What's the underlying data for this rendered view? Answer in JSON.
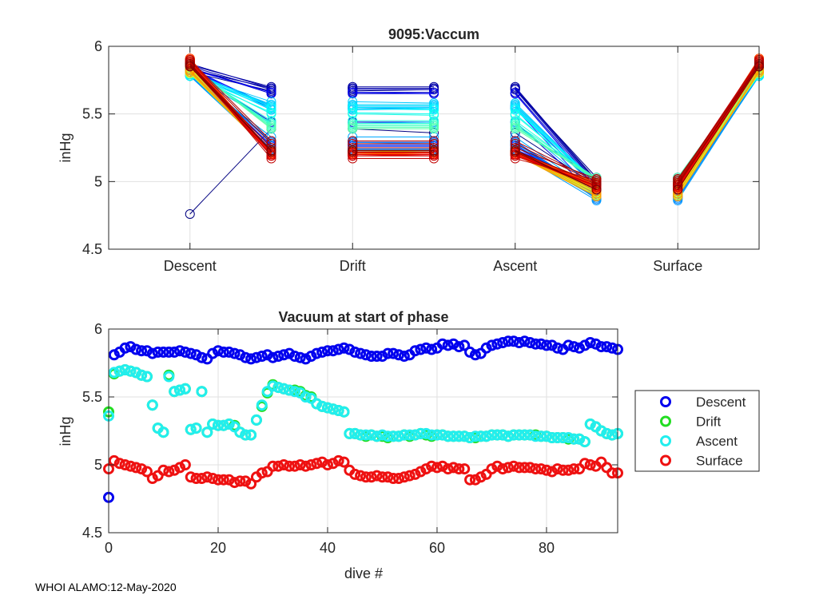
{
  "footer": "WHOI ALAMO:12-May-2020",
  "colors": {
    "descent": "#0000ee",
    "drift": "#22dd22",
    "ascent": "#22eeee",
    "surface": "#ee1111",
    "grid": "#e0e0e0",
    "axis": "#262626"
  },
  "chart_data": [
    {
      "type": "line",
      "title": "9095:Vaccum",
      "xlabel": "",
      "ylabel": "inHg",
      "ylim": [
        4.5,
        6
      ],
      "yticks": [
        4.5,
        5,
        5.5,
        6
      ],
      "yticklabels": [
        "4.5",
        "5",
        "5.5",
        "6"
      ],
      "xlim": [
        0,
        8
      ],
      "xticks": [
        1,
        3,
        5,
        7
      ],
      "xticklabels": [
        "Descent",
        "Drift",
        "Ascent",
        "Surface"
      ],
      "grid": true,
      "colormap": "jet (dive number)",
      "note": "Each dive is a line from phase start to phase end, coloured by dive number; one outlier descent starts at 4.76.",
      "segments": [
        {
          "phase": "Descent",
          "start_range": [
            5.75,
            5.91
          ],
          "end_range": [
            5.17,
            5.7
          ],
          "outlier_start": 4.76
        },
        {
          "phase": "Drift",
          "start_range": [
            5.17,
            5.7
          ],
          "end_range": [
            5.17,
            5.7
          ]
        },
        {
          "phase": "Ascent",
          "start_range": [
            5.18,
            5.7
          ],
          "end_range": [
            4.86,
            5.03
          ]
        },
        {
          "phase": "Surface",
          "start_range": [
            4.85,
            5.03
          ],
          "end_range": [
            5.79,
            5.91
          ]
        }
      ]
    },
    {
      "type": "scatter",
      "title": "Vacuum at start of phase",
      "xlabel": "dive #",
      "ylabel": "inHg",
      "xlim": [
        0,
        93
      ],
      "ylim": [
        4.5,
        6
      ],
      "xticks": [
        0,
        20,
        40,
        60,
        80
      ],
      "xticklabels": [
        "0",
        "20",
        "40",
        "60",
        "80"
      ],
      "yticks": [
        4.5,
        5,
        5.5,
        6
      ],
      "yticklabels": [
        "4.5",
        "5",
        "5.5",
        "6"
      ],
      "legend_position": "outside-right",
      "series": [
        {
          "name": "Descent",
          "color": "#0000ee",
          "values": [
            4.76,
            5.81,
            5.83,
            5.86,
            5.87,
            5.85,
            5.84,
            5.84,
            5.82,
            5.83,
            5.83,
            5.83,
            5.83,
            5.84,
            5.83,
            5.82,
            5.81,
            5.79,
            5.78,
            5.82,
            5.84,
            5.83,
            5.83,
            5.82,
            5.81,
            5.79,
            5.78,
            5.79,
            5.8,
            5.81,
            5.79,
            5.8,
            5.81,
            5.82,
            5.8,
            5.79,
            5.78,
            5.8,
            5.82,
            5.83,
            5.84,
            5.84,
            5.85,
            5.86,
            5.85,
            5.83,
            5.82,
            5.81,
            5.8,
            5.8,
            5.8,
            5.82,
            5.82,
            5.81,
            5.8,
            5.81,
            5.84,
            5.85,
            5.86,
            5.85,
            5.86,
            5.89,
            5.88,
            5.89,
            5.87,
            5.88,
            5.83,
            5.81,
            5.82,
            5.86,
            5.88,
            5.89,
            5.9,
            5.91,
            5.91,
            5.9,
            5.91,
            5.9,
            5.89,
            5.89,
            5.88,
            5.88,
            5.86,
            5.85,
            5.88,
            5.87,
            5.86,
            5.88,
            5.9,
            5.89,
            5.87,
            5.87,
            5.86,
            5.85
          ]
        },
        {
          "name": "Drift",
          "color": "#22dd22",
          "values": [
            5.39,
            5.67,
            5.69,
            5.7,
            5.69,
            5.68,
            5.66,
            5.65,
            5.44,
            5.27,
            5.24,
            5.66,
            5.54,
            5.55,
            5.56,
            5.26,
            5.27,
            5.54,
            5.24,
            5.3,
            5.29,
            5.29,
            5.3,
            5.29,
            5.24,
            5.22,
            5.22,
            5.33,
            5.43,
            5.53,
            5.59,
            5.57,
            5.56,
            5.55,
            5.55,
            5.54,
            5.51,
            5.5,
            5.45,
            5.43,
            5.42,
            5.41,
            5.4,
            5.39,
            5.23,
            5.23,
            5.22,
            5.21,
            5.22,
            5.21,
            5.21,
            5.2,
            5.21,
            5.21,
            5.22,
            5.21,
            5.22,
            5.23,
            5.22,
            5.21,
            5.22,
            5.22,
            5.21,
            5.21,
            5.21,
            5.21,
            5.2,
            5.2,
            5.21,
            5.21,
            5.22,
            5.22,
            5.22,
            5.21,
            5.22,
            5.22,
            5.22,
            5.22,
            5.22,
            5.21,
            5.21,
            5.2,
            5.2,
            5.2,
            5.19,
            5.19,
            5.19,
            5.17,
            5.3,
            5.28,
            5.25,
            5.23,
            5.22,
            5.23
          ]
        },
        {
          "name": "Ascent",
          "color": "#22eeee",
          "values": [
            5.36,
            5.68,
            5.69,
            5.7,
            5.69,
            5.68,
            5.66,
            5.65,
            5.44,
            5.27,
            5.24,
            5.65,
            5.54,
            5.55,
            5.56,
            5.26,
            5.27,
            5.54,
            5.24,
            5.3,
            5.29,
            5.29,
            5.3,
            5.28,
            5.24,
            5.22,
            5.22,
            5.33,
            5.44,
            5.54,
            5.58,
            5.57,
            5.56,
            5.55,
            5.54,
            5.53,
            5.5,
            5.49,
            5.45,
            5.43,
            5.42,
            5.41,
            5.4,
            5.39,
            5.23,
            5.23,
            5.22,
            5.22,
            5.22,
            5.21,
            5.22,
            5.21,
            5.21,
            5.21,
            5.22,
            5.22,
            5.22,
            5.23,
            5.23,
            5.22,
            5.22,
            5.22,
            5.21,
            5.21,
            5.21,
            5.21,
            5.2,
            5.21,
            5.21,
            5.21,
            5.22,
            5.22,
            5.22,
            5.21,
            5.22,
            5.22,
            5.22,
            5.22,
            5.21,
            5.21,
            5.21,
            5.2,
            5.2,
            5.2,
            5.2,
            5.19,
            5.19,
            5.17,
            5.3,
            5.28,
            5.25,
            5.23,
            5.22,
            5.23
          ]
        },
        {
          "name": "Surface",
          "color": "#ee1111",
          "values": [
            4.97,
            5.03,
            5.01,
            5.0,
            4.99,
            4.98,
            4.97,
            4.95,
            4.9,
            4.92,
            4.96,
            4.95,
            4.96,
            4.98,
            5.0,
            4.91,
            4.9,
            4.9,
            4.91,
            4.9,
            4.89,
            4.89,
            4.89,
            4.87,
            4.88,
            4.88,
            4.86,
            4.91,
            4.94,
            4.95,
            4.99,
            4.99,
            5.0,
            4.99,
            4.99,
            5.0,
            4.99,
            5.0,
            5.01,
            5.02,
            5.0,
            5.01,
            5.03,
            5.02,
            4.96,
            4.93,
            4.92,
            4.91,
            4.91,
            4.92,
            4.91,
            4.91,
            4.9,
            4.9,
            4.91,
            4.92,
            4.93,
            4.95,
            4.97,
            4.99,
            4.98,
            4.99,
            4.97,
            4.98,
            4.97,
            4.97,
            4.89,
            4.89,
            4.91,
            4.93,
            4.97,
            4.99,
            4.97,
            4.98,
            4.99,
            4.98,
            4.98,
            4.98,
            4.97,
            4.97,
            4.96,
            4.95,
            4.97,
            4.96,
            4.96,
            4.97,
            4.97,
            5.01,
            5.0,
            4.99,
            5.02,
            4.98,
            4.94,
            4.94
          ]
        }
      ]
    }
  ]
}
